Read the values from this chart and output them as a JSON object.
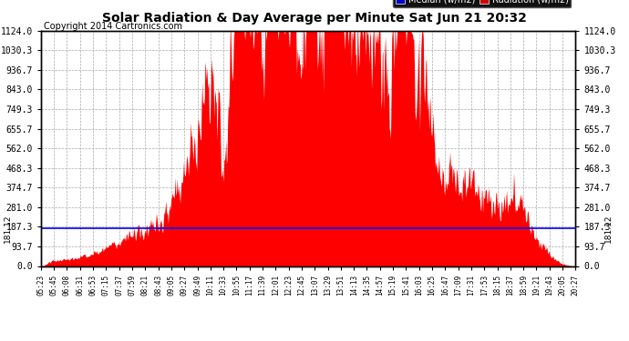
{
  "title": "Solar Radiation & Day Average per Minute Sat Jun 21 20:32",
  "copyright": "Copyright 2014 Cartronics.com",
  "median_value": 181.12,
  "y_max": 1124.0,
  "y_ticks": [
    0.0,
    93.7,
    187.3,
    281.0,
    374.7,
    468.3,
    562.0,
    655.7,
    749.3,
    843.0,
    936.7,
    1030.3,
    1124.0
  ],
  "bg_color": "#ffffff",
  "fill_color": "#ff0000",
  "median_color": "#0000ff",
  "legend_median_bg": "#0000cc",
  "legend_radiation_bg": "#cc0000",
  "x_tick_labels": [
    "05:23",
    "05:45",
    "06:08",
    "06:31",
    "06:53",
    "07:15",
    "07:37",
    "07:59",
    "08:21",
    "08:43",
    "09:05",
    "09:27",
    "09:49",
    "10:11",
    "10:33",
    "10:55",
    "11:17",
    "11:39",
    "12:01",
    "12:23",
    "12:45",
    "13:07",
    "13:29",
    "13:51",
    "14:13",
    "14:35",
    "14:57",
    "15:19",
    "15:41",
    "16:03",
    "16:25",
    "16:47",
    "17:09",
    "17:31",
    "17:53",
    "18:15",
    "18:37",
    "18:59",
    "19:21",
    "19:43",
    "20:05",
    "20:27"
  ],
  "n_points": 900
}
